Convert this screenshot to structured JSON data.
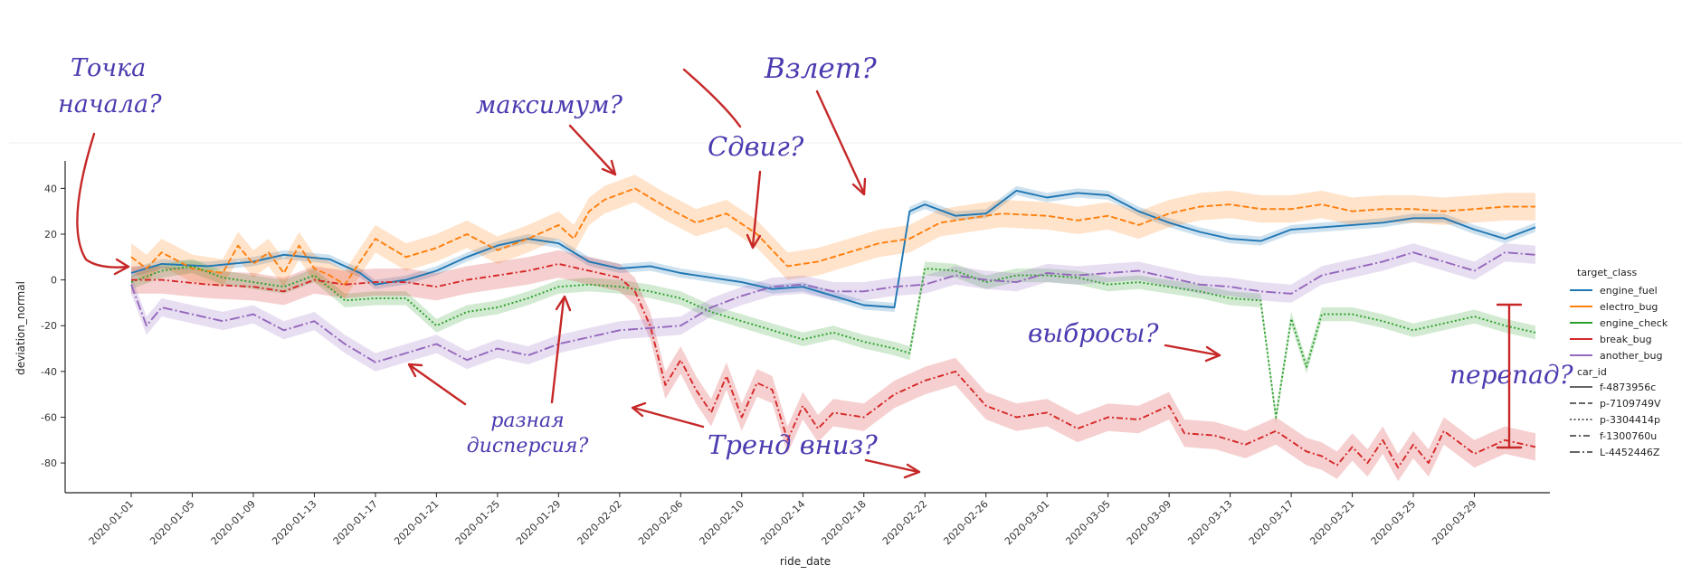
{
  "chart_data": {
    "type": "line",
    "xlabel": "ride_date",
    "ylabel": "deviation_normal",
    "ylim": [
      -93,
      52
    ],
    "x_start": "2020-01-01",
    "x_end": "2020-04-02",
    "x_ticks": [
      "2020-01-01",
      "2020-01-05",
      "2020-01-09",
      "2020-01-13",
      "2020-01-17",
      "2020-01-21",
      "2020-01-25",
      "2020-01-29",
      "2020-02-02",
      "2020-02-06",
      "2020-02-10",
      "2020-02-14",
      "2020-02-18",
      "2020-02-22",
      "2020-02-26",
      "2020-03-01",
      "2020-03-05",
      "2020-03-09",
      "2020-03-13",
      "2020-03-17",
      "2020-03-21",
      "2020-03-25",
      "2020-03-29"
    ],
    "y_ticks": [
      40,
      20,
      0,
      -20,
      -40,
      -60,
      -80
    ],
    "grid": false,
    "legend": {
      "placement": "right",
      "hue_title": "target_class",
      "style_title": "car_id",
      "style_entries": [
        "f-4873956c",
        "p-7109749V",
        "p-3304414p",
        "f-1300760u",
        "L-4452446Z"
      ]
    },
    "series": [
      {
        "name": "engine_fuel",
        "color": "#1f77b4",
        "dash": "solid",
        "x": [
          "2020-01-01",
          "2020-01-03",
          "2020-01-06",
          "2020-01-09",
          "2020-01-11",
          "2020-01-14",
          "2020-01-16",
          "2020-01-17",
          "2020-01-19",
          "2020-01-21",
          "2020-01-23",
          "2020-01-25",
          "2020-01-27",
          "2020-01-29",
          "2020-01-31",
          "2020-02-02",
          "2020-02-04",
          "2020-02-06",
          "2020-02-08",
          "2020-02-10",
          "2020-02-12",
          "2020-02-14",
          "2020-02-16",
          "2020-02-18",
          "2020-02-20",
          "2020-02-21",
          "2020-02-22",
          "2020-02-24",
          "2020-02-26",
          "2020-02-28",
          "2020-03-01",
          "2020-03-03",
          "2020-03-05",
          "2020-03-07",
          "2020-03-09",
          "2020-03-11",
          "2020-03-13",
          "2020-03-15",
          "2020-03-17",
          "2020-03-19",
          "2020-03-21",
          "2020-03-23",
          "2020-03-25",
          "2020-03-27",
          "2020-03-29",
          "2020-03-31",
          "2020-04-02"
        ],
        "y": [
          3,
          7,
          6,
          8,
          11,
          9,
          3,
          -2,
          0,
          4,
          10,
          15,
          18,
          16,
          8,
          5,
          6,
          3,
          1,
          -1,
          -4,
          -3,
          -7,
          -11,
          -12,
          30,
          33,
          28,
          29,
          39,
          36,
          38,
          37,
          30,
          25,
          21,
          18,
          17,
          22,
          23,
          24,
          25,
          27,
          27,
          22,
          18,
          23
        ],
        "band": 2
      },
      {
        "name": "electro_bug",
        "color": "#ff7f0e",
        "dash": "dashed",
        "x": [
          "2020-01-01",
          "2020-01-02",
          "2020-01-03",
          "2020-01-05",
          "2020-01-07",
          "2020-01-08",
          "2020-01-09",
          "2020-01-10",
          "2020-01-11",
          "2020-01-12",
          "2020-01-13",
          "2020-01-14",
          "2020-01-15",
          "2020-01-17",
          "2020-01-19",
          "2020-01-21",
          "2020-01-23",
          "2020-01-25",
          "2020-01-27",
          "2020-01-29",
          "2020-01-30",
          "2020-01-31",
          "2020-02-01",
          "2020-02-03",
          "2020-02-05",
          "2020-02-07",
          "2020-02-09",
          "2020-02-11",
          "2020-02-13",
          "2020-02-15",
          "2020-02-17",
          "2020-02-19",
          "2020-02-21",
          "2020-02-23",
          "2020-02-25",
          "2020-02-27",
          "2020-03-01",
          "2020-03-03",
          "2020-03-05",
          "2020-03-07",
          "2020-03-09",
          "2020-03-11",
          "2020-03-13",
          "2020-03-15",
          "2020-03-17",
          "2020-03-19",
          "2020-03-21",
          "2020-03-23",
          "2020-03-25",
          "2020-03-27",
          "2020-03-29",
          "2020-03-31",
          "2020-04-02"
        ],
        "y": [
          10,
          5,
          12,
          5,
          3,
          15,
          7,
          12,
          3,
          15,
          5,
          2,
          -2,
          18,
          10,
          14,
          20,
          13,
          18,
          24,
          18,
          30,
          35,
          40,
          32,
          25,
          29,
          20,
          6,
          8,
          12,
          16,
          18,
          25,
          27,
          29,
          28,
          26,
          28,
          24,
          29,
          32,
          33,
          31,
          31,
          33,
          30,
          31,
          31,
          30,
          31,
          32,
          32
        ],
        "band": 6
      },
      {
        "name": "engine_check",
        "color": "#2ca02c",
        "dash": "dotted",
        "x": [
          "2020-01-01",
          "2020-01-03",
          "2020-01-05",
          "2020-01-07",
          "2020-01-09",
          "2020-01-11",
          "2020-01-13",
          "2020-01-15",
          "2020-01-17",
          "2020-01-19",
          "2020-01-21",
          "2020-01-23",
          "2020-01-25",
          "2020-01-27",
          "2020-01-29",
          "2020-01-31",
          "2020-02-02",
          "2020-02-04",
          "2020-02-06",
          "2020-02-08",
          "2020-02-10",
          "2020-02-12",
          "2020-02-14",
          "2020-02-16",
          "2020-02-18",
          "2020-02-20",
          "2020-02-21",
          "2020-02-22",
          "2020-02-24",
          "2020-02-26",
          "2020-02-28",
          "2020-03-01",
          "2020-03-03",
          "2020-03-05",
          "2020-03-07",
          "2020-03-09",
          "2020-03-11",
          "2020-03-13",
          "2020-03-15",
          "2020-03-16",
          "2020-03-17",
          "2020-03-18",
          "2020-03-19",
          "2020-03-21",
          "2020-03-23",
          "2020-03-25",
          "2020-03-27",
          "2020-03-29",
          "2020-03-31",
          "2020-04-02"
        ],
        "y": [
          -1,
          4,
          6,
          1,
          -1,
          -3,
          2,
          -9,
          -8,
          -8,
          -20,
          -14,
          -12,
          -8,
          -3,
          -2,
          -3,
          -5,
          -8,
          -14,
          -18,
          -22,
          -26,
          -23,
          -27,
          -30,
          -32,
          5,
          4,
          -1,
          2,
          2,
          1,
          -2,
          -1,
          -3,
          -5,
          -8,
          -9,
          -60,
          -17,
          -38,
          -15,
          -15,
          -18,
          -22,
          -19,
          -16,
          -20,
          -23
        ],
        "band": 3
      },
      {
        "name": "break_bug",
        "color": "#d62728",
        "dash": "dashdot",
        "x": [
          "2020-01-01",
          "2020-01-03",
          "2020-01-06",
          "2020-01-09",
          "2020-01-11",
          "2020-01-13",
          "2020-01-15",
          "2020-01-17",
          "2020-01-19",
          "2020-01-21",
          "2020-01-23",
          "2020-01-25",
          "2020-01-27",
          "2020-01-29",
          "2020-01-31",
          "2020-02-02",
          "2020-02-03",
          "2020-02-04",
          "2020-02-05",
          "2020-02-06",
          "2020-02-07",
          "2020-02-08",
          "2020-02-09",
          "2020-02-10",
          "2020-02-11",
          "2020-02-12",
          "2020-02-13",
          "2020-02-14",
          "2020-02-15",
          "2020-02-16",
          "2020-02-18",
          "2020-02-20",
          "2020-02-22",
          "2020-02-24",
          "2020-02-26",
          "2020-02-28",
          "2020-03-01",
          "2020-03-03",
          "2020-03-05",
          "2020-03-07",
          "2020-03-09",
          "2020-03-10",
          "2020-03-12",
          "2020-03-14",
          "2020-03-16",
          "2020-03-18",
          "2020-03-19",
          "2020-03-20",
          "2020-03-21",
          "2020-03-22",
          "2020-03-23",
          "2020-03-24",
          "2020-03-25",
          "2020-03-26",
          "2020-03-27",
          "2020-03-29",
          "2020-03-31",
          "2020-04-02"
        ],
        "y": [
          0,
          0,
          -2,
          -3,
          -5,
          0,
          -2,
          -1,
          -1,
          -3,
          0,
          2,
          4,
          7,
          4,
          1,
          -5,
          -20,
          -46,
          -35,
          -48,
          -58,
          -42,
          -60,
          -45,
          -48,
          -70,
          -55,
          -65,
          -58,
          -60,
          -50,
          -44,
          -40,
          -55,
          -60,
          -58,
          -65,
          -60,
          -61,
          -55,
          -67,
          -68,
          -72,
          -66,
          -75,
          -77,
          -81,
          -73,
          -80,
          -70,
          -82,
          -72,
          -80,
          -66,
          -76,
          -70,
          -73
        ],
        "band": 6
      },
      {
        "name": "another_bug",
        "color": "#9467bd",
        "dash": "longdash",
        "x": [
          "2020-01-01",
          "2020-01-02",
          "2020-01-03",
          "2020-01-05",
          "2020-01-07",
          "2020-01-09",
          "2020-01-11",
          "2020-01-13",
          "2020-01-15",
          "2020-01-17",
          "2020-01-19",
          "2020-01-21",
          "2020-01-23",
          "2020-01-25",
          "2020-01-27",
          "2020-01-29",
          "2020-01-31",
          "2020-02-02",
          "2020-02-04",
          "2020-02-06",
          "2020-02-08",
          "2020-02-10",
          "2020-02-12",
          "2020-02-14",
          "2020-02-16",
          "2020-02-18",
          "2020-02-20",
          "2020-02-22",
          "2020-02-24",
          "2020-02-26",
          "2020-02-28",
          "2020-03-01",
          "2020-03-03",
          "2020-03-05",
          "2020-03-07",
          "2020-03-09",
          "2020-03-11",
          "2020-03-13",
          "2020-03-15",
          "2020-03-17",
          "2020-03-19",
          "2020-03-21",
          "2020-03-23",
          "2020-03-25",
          "2020-03-27",
          "2020-03-29",
          "2020-03-31",
          "2020-04-02"
        ],
        "y": [
          -2,
          -20,
          -12,
          -15,
          -18,
          -15,
          -22,
          -18,
          -28,
          -36,
          -32,
          -28,
          -35,
          -30,
          -33,
          -28,
          -25,
          -22,
          -21,
          -20,
          -12,
          -7,
          -3,
          -2,
          -5,
          -5,
          -3,
          -2,
          2,
          0,
          -1,
          3,
          2,
          3,
          4,
          1,
          -2,
          -3,
          -5,
          -6,
          2,
          5,
          8,
          12,
          8,
          4,
          12,
          11
        ],
        "band": 4
      }
    ]
  },
  "annotations": {
    "start_point": "Точка\nначала?",
    "maximum": "максимум?",
    "shift": "Сдвиг?",
    "takeoff": "Взлет?",
    "outliers": "выбросы?",
    "drop": "перепад?",
    "variance": "разная\nдисперсия?",
    "trend_down": "Тренд вниз?"
  },
  "annotation_color": "#4a3bb0",
  "arrow_color": "#c62828"
}
